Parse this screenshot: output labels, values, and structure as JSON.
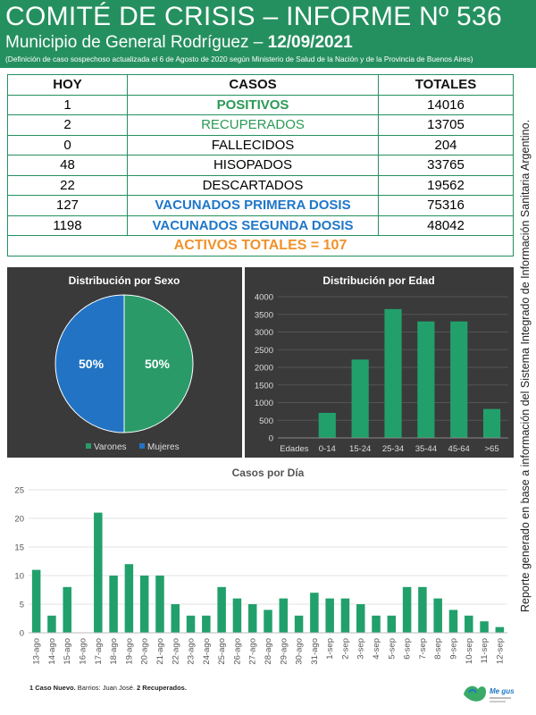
{
  "header": {
    "title": "COMITÉ DE CRISIS – INFORME Nº 536",
    "subtitle": "Municipio de General Rodríguez –",
    "date": "12/09/2021",
    "note": "(Definición de caso sospechoso actualizada el 6 de Agosto de 2020 según Ministerio de Salud de la Nación y de la Provincia de Buenos Aires)"
  },
  "table": {
    "headers": [
      "HOY",
      "CASOS",
      "TOTALES"
    ],
    "rows": [
      {
        "hoy": "1",
        "casos": "POSITIVOS",
        "total": "14016"
      },
      {
        "hoy": "2",
        "casos": "RECUPERADOS",
        "total": "13705"
      },
      {
        "hoy": "0",
        "casos": "FALLECIDOS",
        "total": "204"
      },
      {
        "hoy": "48",
        "casos": "HISOPADOS",
        "total": "33765"
      },
      {
        "hoy": "22",
        "casos": "DESCARTADOS",
        "total": "19562"
      },
      {
        "hoy": "127",
        "casos": "VACUNADOS PRIMERA DOSIS",
        "total": "75316"
      },
      {
        "hoy": "1198",
        "casos": "VACUNADOS SEGUNDA DOSIS",
        "total": "48042"
      }
    ],
    "activos": "ACTIVOS TOTALES = 107"
  },
  "side_text": "Reporte generado en base a información del Sistema Integrado de Información Sanitaria Argentino.",
  "colors": {
    "header_bg": "#25905f",
    "bar_green": "#22a06b",
    "pie_green": "#2a9b68",
    "pie_blue": "#2273c3",
    "text_green": "#2a9a55",
    "text_blue": "#1f77c8",
    "text_orange": "#f0922b",
    "panel_bg": "#3a3a3a"
  },
  "chart_data": [
    {
      "type": "pie",
      "title": "Distribución por Sexo",
      "labels": [
        "Varones",
        "Mujeres"
      ],
      "values": [
        50,
        50
      ],
      "data_labels": [
        "50%",
        "50%"
      ],
      "colors": [
        "#2a9b68",
        "#2273c3"
      ],
      "legend": "bottom"
    },
    {
      "type": "bar",
      "title": "Distribución por Edad",
      "categories": [
        "Edades",
        "0-14",
        "15-24",
        "25-34",
        "35-44",
        "45-64",
        ">65"
      ],
      "values": [
        0,
        710,
        2220,
        3650,
        3300,
        3300,
        820
      ],
      "ylim": [
        0,
        4000
      ],
      "yticks": [
        0,
        500,
        1000,
        1500,
        2000,
        2500,
        3000,
        3500,
        4000
      ],
      "grid": true
    },
    {
      "type": "bar",
      "title": "Casos por Día",
      "categories": [
        "13-ago",
        "14-ago",
        "15-ago",
        "16-ago",
        "17-ago",
        "18-ago",
        "19-ago",
        "20-ago",
        "21-ago",
        "22-ago",
        "23-ago",
        "24-ago",
        "25-ago",
        "26-ago",
        "27-ago",
        "28-ago",
        "29-ago",
        "30-ago",
        "31-ago",
        "1-sep",
        "2-sep",
        "3-sep",
        "4-sep",
        "5-sep",
        "6-sep",
        "7-sep",
        "8-sep",
        "9-sep",
        "10-sep",
        "11-sep",
        "12-sep"
      ],
      "values": [
        11,
        3,
        8,
        0,
        21,
        10,
        12,
        10,
        10,
        5,
        3,
        3,
        8,
        6,
        5,
        4,
        6,
        3,
        7,
        6,
        6,
        5,
        3,
        3,
        8,
        8,
        6,
        4,
        3,
        2,
        1
      ],
      "ylim": [
        0,
        25
      ],
      "yticks": [
        0,
        5,
        10,
        15,
        20,
        25
      ],
      "grid": true
    }
  ],
  "footnote": {
    "part1": "1 Caso Nuevo.",
    "part2": " Barrios: Juan José.",
    "part3": " 2 Recuperados."
  },
  "logo_text": "Me gusta"
}
